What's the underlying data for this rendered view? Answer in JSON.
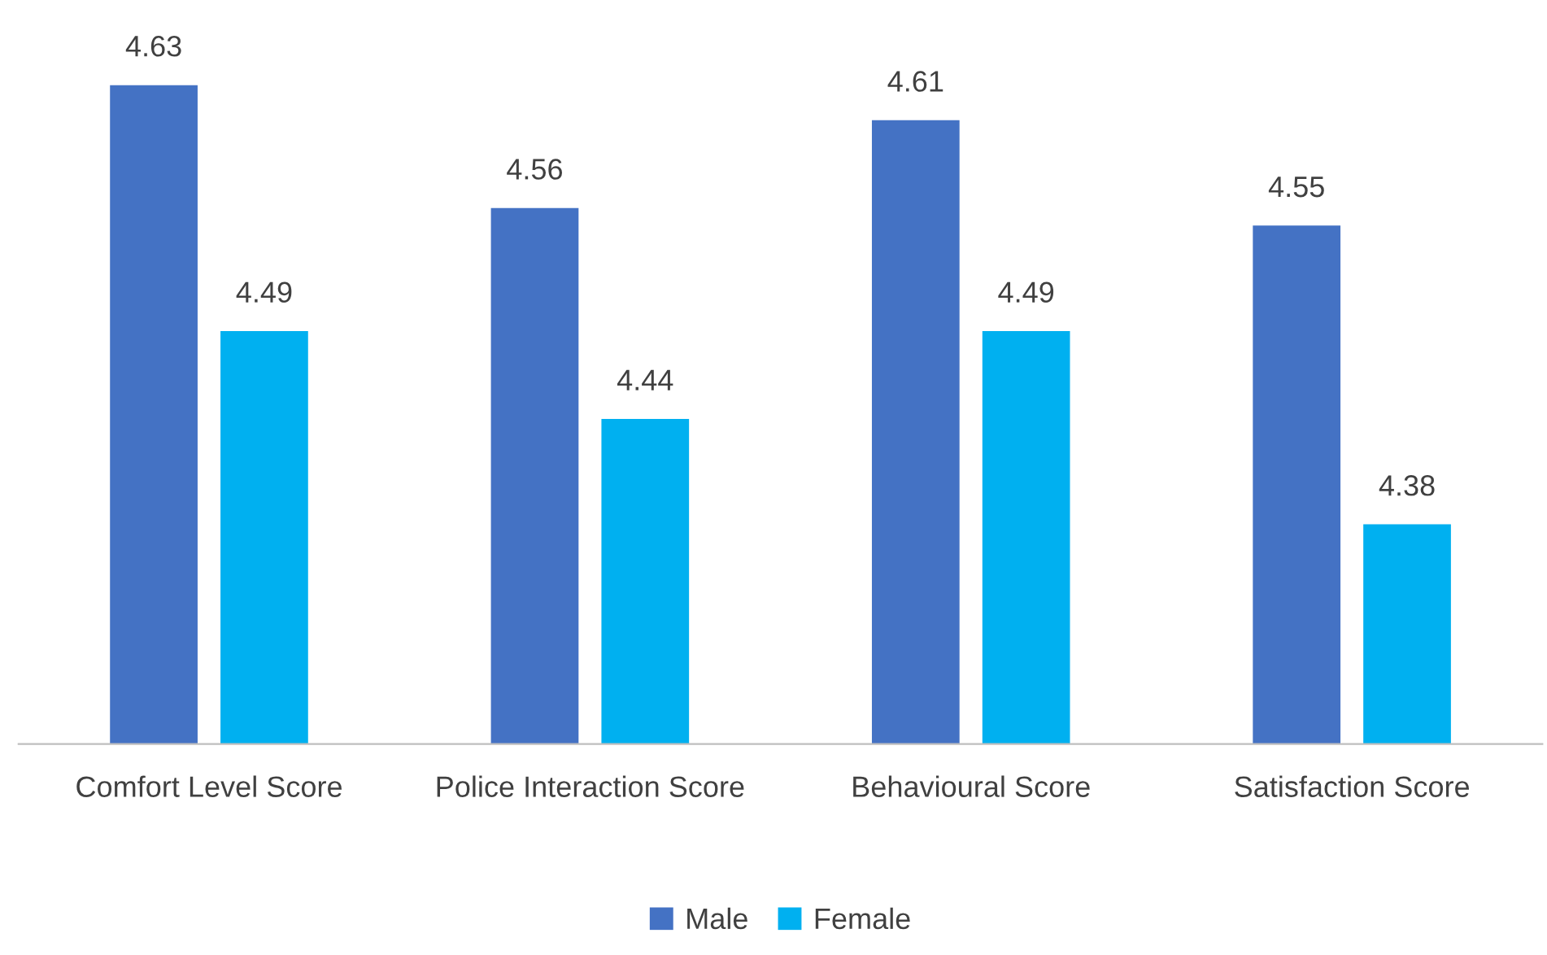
{
  "chart_data": {
    "type": "bar",
    "categories": [
      "Comfort Level Score",
      "Police Interaction Score",
      "Behavioural Score",
      "Satisfaction Score"
    ],
    "series": [
      {
        "name": "Male",
        "color": "#4472c4",
        "values": [
          4.63,
          4.56,
          4.61,
          4.55
        ]
      },
      {
        "name": "Female",
        "color": "#00b0f0",
        "values": [
          4.49,
          4.44,
          4.49,
          4.38
        ]
      }
    ],
    "ylim": [
      4.255,
      4.63
    ],
    "tick_labels": "x",
    "data_labels": true,
    "legend": "bottom"
  }
}
